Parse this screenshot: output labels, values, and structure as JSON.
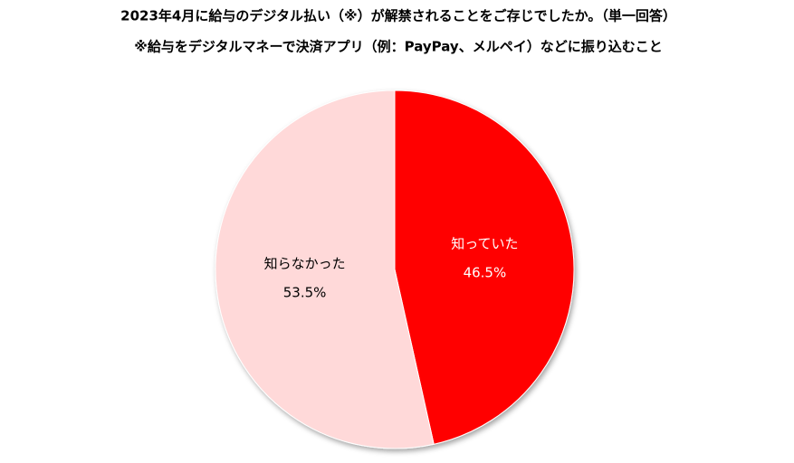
{
  "chart_data": {
    "type": "pie",
    "title": "2023年4月に給与のデジタル払い（※）が解禁されることをご存じでしたか。（単一回答）",
    "subtitle": "※給与をデジタルマネーで決済アプリ（例：PayPay、メルペイ）などに振り込むこと",
    "categories": [
      "知っていた",
      "知らなかった"
    ],
    "values": [
      46.5,
      53.5
    ],
    "value_labels": [
      "46.5%",
      "53.5%"
    ],
    "colors": [
      "#ff0000",
      "#ffd9d9"
    ],
    "label_colors": [
      "#ffffff",
      "#000000"
    ]
  }
}
